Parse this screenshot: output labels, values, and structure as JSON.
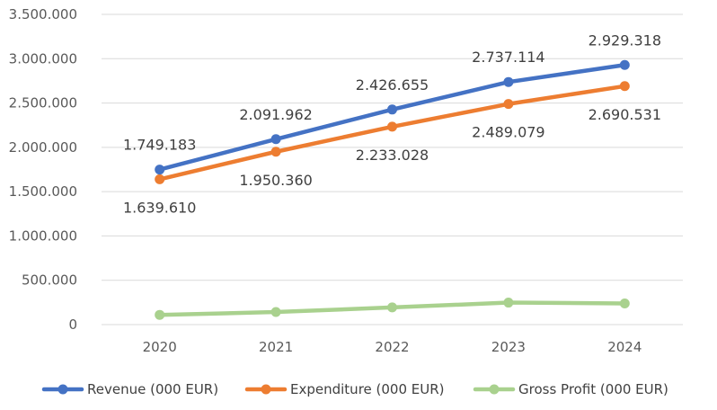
{
  "chart_data": {
    "type": "line",
    "title": "",
    "xlabel": "",
    "ylabel": "",
    "categories": [
      "2020",
      "2021",
      "2022",
      "2023",
      "2024"
    ],
    "ylim": [
      0,
      3500000
    ],
    "y_ticks": [
      0,
      500000,
      1000000,
      1500000,
      2000000,
      2500000,
      3000000,
      3500000
    ],
    "y_tick_labels": [
      "0",
      "500.000",
      "1.000.000",
      "1.500.000",
      "2.000.000",
      "2.500.000",
      "3.000.000",
      "3.500.000"
    ],
    "grid": true,
    "legend_position": "bottom",
    "series": [
      {
        "name": "Revenue (000 EUR)",
        "color": "#4472C4",
        "values": [
          1749183,
          2091962,
          2426655,
          2737114,
          2929318
        ],
        "labels": [
          "1.749.183",
          "2.091.962",
          "2.426.655",
          "2.737.114",
          "2.929.318"
        ],
        "label_position": "above"
      },
      {
        "name": "Expenditure (000 EUR)",
        "color": "#ED7D31",
        "values": [
          1639610,
          1950360,
          2233028,
          2489079,
          2690531
        ],
        "labels": [
          "1.639.610",
          "1.950.360",
          "2.233.028",
          "2.489.079",
          "2.690.531"
        ],
        "label_position": "below"
      },
      {
        "name": "Gross Profit (000 EUR)",
        "color": "#A9D18E",
        "values": [
          109573,
          141602,
          193627,
          248035,
          238787
        ],
        "labels": [],
        "label_position": "none"
      }
    ]
  }
}
